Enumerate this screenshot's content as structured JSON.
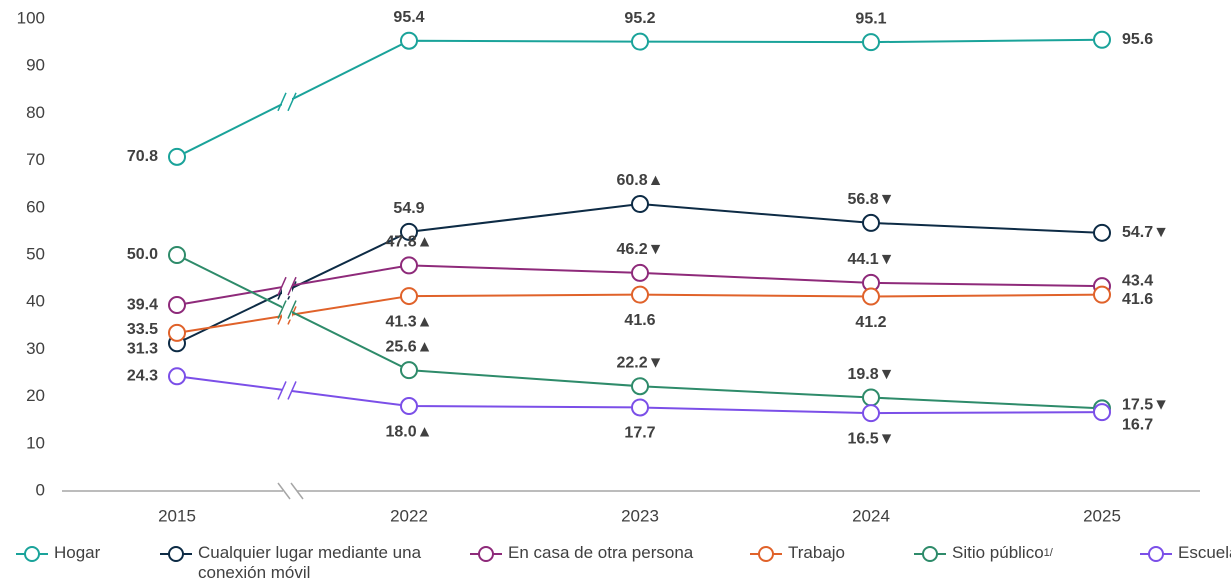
{
  "chart_data": {
    "type": "line",
    "categories": [
      "2015",
      "2022",
      "2023",
      "2024",
      "2025"
    ],
    "ylim": [
      0,
      100
    ],
    "yticks": [
      0,
      10,
      20,
      30,
      40,
      50,
      60,
      70,
      80,
      90,
      100
    ],
    "series": [
      {
        "name": "Hogar",
        "color": "#1aa39a",
        "values": [
          70.8,
          95.4,
          95.2,
          95.1,
          95.6
        ],
        "value_labels": [
          "70.8",
          "95.4",
          "95.2",
          "95.1",
          "95.6"
        ]
      },
      {
        "name": "Cualquier lugar mediante una conexión móvil",
        "color": "#0d2b45",
        "values": [
          31.3,
          54.9,
          60.8,
          56.8,
          54.7
        ],
        "value_labels": [
          "31.3",
          "54.9",
          "60.8▲",
          "56.8▼",
          "54.7▼"
        ]
      },
      {
        "name": "En casa de otra persona",
        "color": "#8e2a7a",
        "values": [
          39.4,
          47.8,
          46.2,
          44.1,
          43.4
        ],
        "value_labels": [
          "39.4",
          "47.8▲",
          "46.2▼",
          "44.1▼",
          "43.4"
        ]
      },
      {
        "name": "Trabajo",
        "color": "#e0622a",
        "values": [
          33.5,
          41.3,
          41.6,
          41.2,
          41.6
        ],
        "value_labels": [
          "33.5",
          "41.3▲",
          "41.6",
          "41.2",
          "41.6"
        ]
      },
      {
        "name": "Sitio público",
        "superscript": "1/",
        "color": "#2e8b6a",
        "values": [
          50.0,
          25.6,
          22.2,
          19.8,
          17.5
        ],
        "value_labels": [
          "50.0",
          "25.6▲",
          "22.2▼",
          "19.8▼",
          "17.5▼"
        ]
      },
      {
        "name": "Escuela",
        "color": "#7b4fe8",
        "values": [
          24.3,
          18.0,
          17.7,
          16.5,
          16.7
        ],
        "value_labels": [
          "24.3",
          "18.0▲",
          "17.7",
          "16.5▼",
          "16.7"
        ]
      }
    ]
  }
}
